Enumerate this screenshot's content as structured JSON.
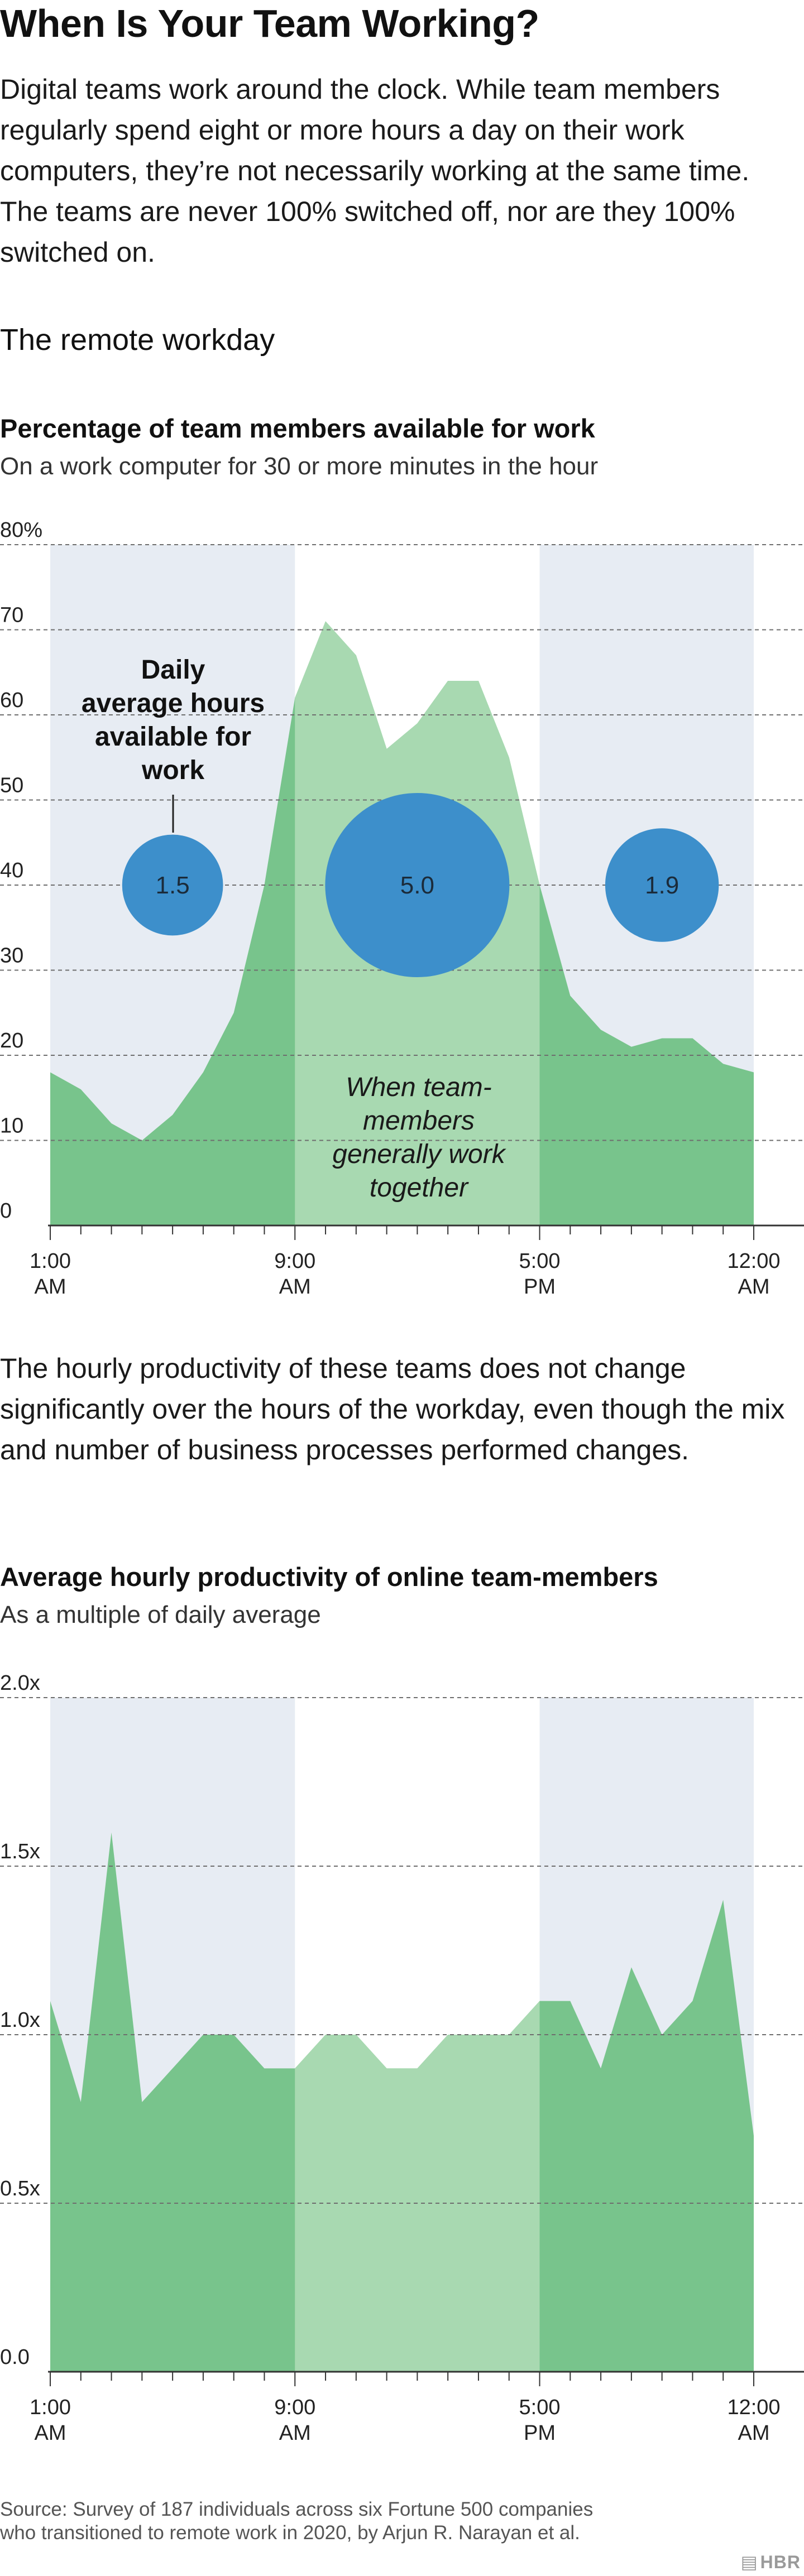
{
  "header": {
    "title": "When Is Your Team Working?",
    "intro": "Digital teams work around the clock. While team members regularly spend eight or more hours a day on their work computers, they’re not necessarily working at the same time. The teams are never 100% switched off, nor are they 100% switched on."
  },
  "section_heading": "The remote workday",
  "middle_text": "The hourly productivity of these teams does not change significantly over the hours of the workday, even though the mix and number of business processes performed changes.",
  "footer": {
    "source": "Source: Survey of 187 individuals across six Fortune 500 companies who transitioned to remote work in 2020, by Arjun R. Narayan et al.",
    "brand": "HBR"
  },
  "colors": {
    "shade_band": "#e7ecf3",
    "area_dark": "#78c48c",
    "area_light": "#a8d9b1",
    "bubble": "#3d8fcb",
    "grid": "#6e6e6e",
    "axis": "#333333"
  },
  "chart_data": [
    {
      "type": "area",
      "title": "Percentage of team members available for work",
      "subtitle": "On a work computer for 30 or more minutes in the hour",
      "x": [
        1,
        2,
        3,
        4,
        5,
        6,
        7,
        8,
        9,
        10,
        11,
        12,
        13,
        14,
        15,
        16,
        17,
        18,
        19,
        20,
        21,
        22,
        23,
        24
      ],
      "values": [
        18,
        16,
        12,
        10,
        13,
        18,
        25,
        40,
        62,
        71,
        67,
        56,
        59,
        64,
        64,
        55,
        40,
        27,
        23,
        21,
        22,
        22,
        19,
        18
      ],
      "ylim": [
        0,
        80
      ],
      "yticks": [
        0,
        10,
        20,
        30,
        40,
        50,
        60,
        70,
        80
      ],
      "ytick_labels": [
        "0",
        "10",
        "20",
        "30",
        "40",
        "50",
        "60",
        "70",
        "80%"
      ],
      "xticks": [
        1,
        9,
        17,
        24
      ],
      "xtick_labels": [
        [
          "1:00",
          "AM"
        ],
        [
          "9:00",
          "AM"
        ],
        [
          "5:00",
          "PM"
        ],
        [
          "12:00",
          "AM"
        ]
      ],
      "highlight_range": [
        9,
        17
      ],
      "shaded_ranges": [
        [
          1,
          9
        ],
        [
          17,
          24
        ]
      ],
      "bubbles": [
        {
          "x": 5,
          "y": 40,
          "value": 1.5,
          "label": "1.5"
        },
        {
          "x": 13,
          "y": 40,
          "value": 5.0,
          "label": "5.0"
        },
        {
          "x": 21,
          "y": 40,
          "value": 1.9,
          "label": "1.9"
        }
      ],
      "bubble_annotation": [
        "Daily",
        "average hours",
        "available for",
        "work"
      ],
      "overlap_annotation": [
        "When team-",
        "members",
        "generally work",
        "together"
      ],
      "grid": true
    },
    {
      "type": "area",
      "title": "Average hourly productivity of online team-members",
      "subtitle": "As a multiple of daily average",
      "x": [
        1,
        2,
        3,
        4,
        5,
        6,
        7,
        8,
        9,
        10,
        11,
        12,
        13,
        14,
        15,
        16,
        17,
        18,
        19,
        20,
        21,
        22,
        23,
        24
      ],
      "values": [
        1.1,
        0.8,
        1.6,
        0.8,
        0.9,
        1.0,
        1.0,
        0.9,
        0.9,
        1.0,
        1.0,
        0.9,
        0.9,
        1.0,
        1.0,
        1.0,
        1.1,
        1.1,
        0.9,
        1.2,
        1.0,
        1.1,
        1.4,
        0.7
      ],
      "ylim": [
        0,
        2.0
      ],
      "yticks": [
        0,
        0.5,
        1.0,
        1.5,
        2.0
      ],
      "ytick_labels": [
        "0.0",
        "0.5x",
        "1.0x",
        "1.5x",
        "2.0x"
      ],
      "xticks": [
        1,
        9,
        17,
        24
      ],
      "xtick_labels": [
        [
          "1:00",
          "AM"
        ],
        [
          "9:00",
          "AM"
        ],
        [
          "5:00",
          "PM"
        ],
        [
          "12:00",
          "AM"
        ]
      ],
      "highlight_range": [
        9,
        17
      ],
      "shaded_ranges": [
        [
          1,
          9
        ],
        [
          17,
          24
        ]
      ],
      "grid": true
    }
  ]
}
